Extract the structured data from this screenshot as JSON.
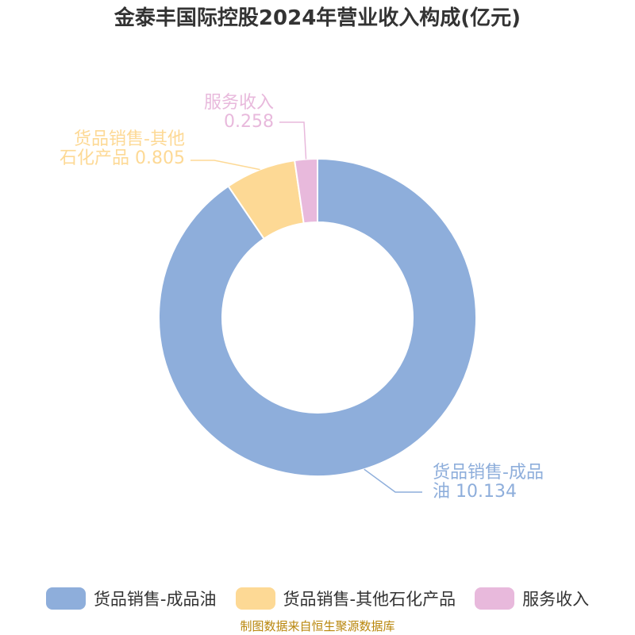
{
  "title": "金泰丰国际控股2024年营业收入构成(亿元)",
  "source": "制图数据来自恒生聚源数据库",
  "chart_data": {
    "type": "pie",
    "style": "donut",
    "title": "金泰丰国际控股2024年营业收入构成(亿元)",
    "legend_position": "bottom",
    "slices": [
      {
        "label": "货品销售-成品油",
        "value": 10.134,
        "color": "#8eaedb",
        "label_lines": [
          "货品销售-成品",
          "油 10.134"
        ]
      },
      {
        "label": "货品销售-其他石化产品",
        "value": 0.805,
        "color": "#fdd995",
        "label_lines": [
          "货品销售-其他",
          "石化产品 0.805"
        ]
      },
      {
        "label": "服务收入",
        "value": 0.258,
        "color": "#e8b9dc",
        "label_lines": [
          "服务收入",
          "0.258"
        ]
      }
    ]
  }
}
